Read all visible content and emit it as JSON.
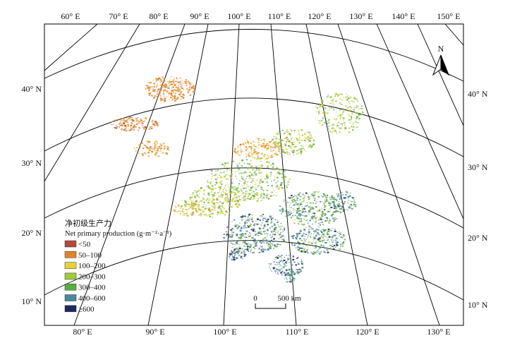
{
  "map": {
    "top_lon_labels": [
      "60° E",
      "70° E",
      "80° E",
      "90° E",
      "100° E",
      "110° E",
      "120° E",
      "130° E",
      "140° E",
      "150° E"
    ],
    "bottom_lon_labels": [
      "80° E",
      "90° E",
      "100° E",
      "110° E",
      "120° E",
      "130° E"
    ],
    "left_lat_labels": [
      "40° N",
      "30° N",
      "20° N",
      "10° N"
    ],
    "right_lat_labels": [
      "40° N",
      "30° N",
      "20° N",
      "10° N"
    ],
    "north_arrow_label": "N",
    "scale_bar": {
      "zero": "0",
      "distance": "500 km"
    }
  },
  "legend": {
    "title_cn": "净初级生产力",
    "title_en": "Net primary production (g·m⁻²·a⁻¹)",
    "classes": [
      {
        "label": "<50",
        "color": "#b5483e"
      },
      {
        "label": "50–100",
        "color": "#e0862a"
      },
      {
        "label": "100–200",
        "color": "#e8d23a"
      },
      {
        "label": "200–300",
        "color": "#9fcb3b"
      },
      {
        "label": "300–400",
        "color": "#5aab3e"
      },
      {
        "label": "400–600",
        "color": "#4a8a9a"
      },
      {
        "label": "≥600",
        "color": "#1e2a5e"
      }
    ]
  }
}
